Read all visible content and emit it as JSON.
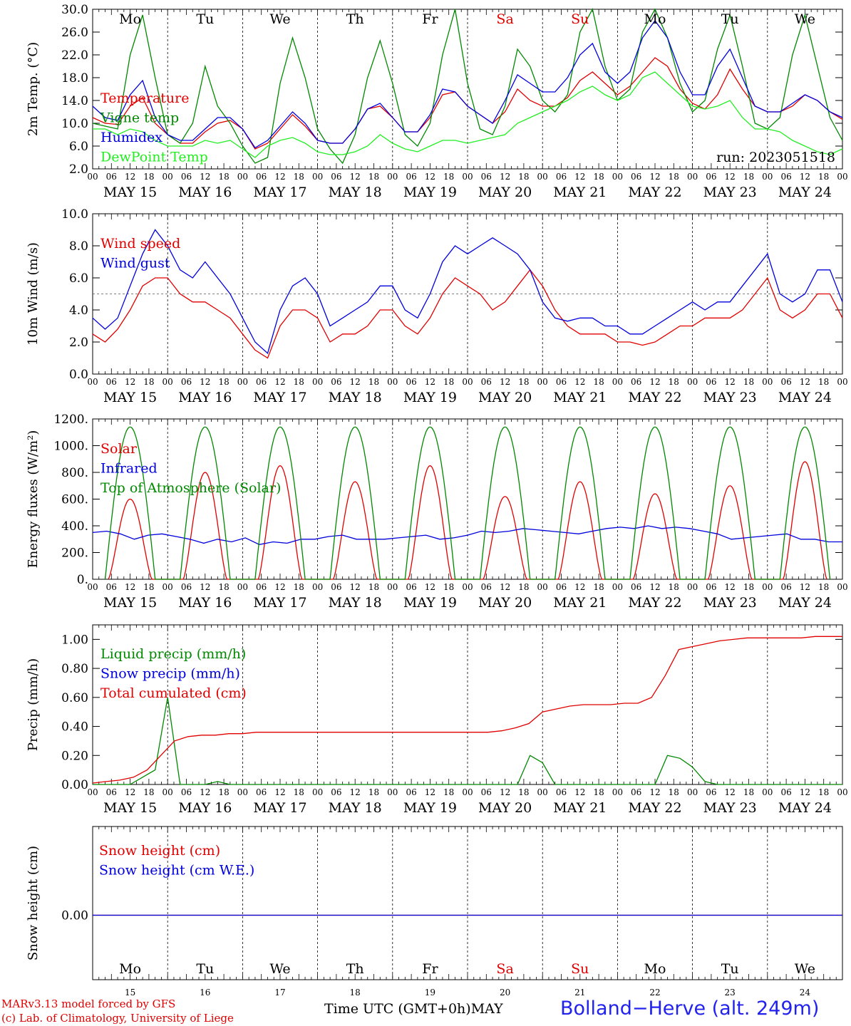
{
  "chart_data": {
    "x_axis": {
      "hour_ticks": [
        "00",
        "06",
        "12",
        "18"
      ],
      "final_tick": "00",
      "dates": [
        "MAY 15",
        "MAY 16",
        "MAY 17",
        "MAY 18",
        "MAY 19",
        "MAY 20",
        "MAY 21",
        "MAY 22",
        "MAY 23",
        "MAY 24"
      ],
      "weekdays": [
        "Mo",
        "Tu",
        "We",
        "Th",
        "Fr",
        "Sa",
        "Su",
        "Mo",
        "Tu",
        "We"
      ],
      "weekday_colors": [
        "#000000",
        "#000000",
        "#000000",
        "#000000",
        "#000000",
        "#e00000",
        "#e00000",
        "#000000",
        "#000000",
        "#000000"
      ],
      "day_numbers": [
        "15",
        "16",
        "17",
        "18",
        "19",
        "20",
        "21",
        "22",
        "23",
        "24"
      ],
      "month": "MAY",
      "xlabel": "Time UTC (GMT+0h)"
    },
    "panels": [
      {
        "id": "temperature",
        "type": "line",
        "ylabel": "2m Temp. (°C)",
        "ylim": [
          2.0,
          30.0
        ],
        "yticks": [
          "2.0",
          "6.0",
          "10.0",
          "14.0",
          "18.0",
          "22.0",
          "26.0",
          "30.0"
        ],
        "show_weekdays": true,
        "annotation": "run: 2023051518",
        "series": [
          {
            "name": "Temperature",
            "color": "#e00000",
            "values": [
              11,
              10,
              9.8,
              13,
              14.5,
              10,
              8,
              6.5,
              6.5,
              8.5,
              10,
              10.5,
              9,
              5.5,
              6.5,
              9,
              11.5,
              9.5,
              7,
              6.5,
              6.5,
              9,
              12.5,
              13,
              11,
              8.5,
              8.5,
              11,
              15,
              15.5,
              13,
              11.5,
              10,
              12,
              16,
              14,
              13,
              13,
              14.5,
              17.5,
              19,
              17,
              15,
              16.5,
              19,
              21.5,
              20,
              16,
              13.5,
              12.5,
              15,
              19.5,
              16,
              13,
              12,
              12,
              13,
              15,
              14,
              12,
              10.7
            ]
          },
          {
            "name": "Vigne temp",
            "color": "#008800",
            "values": [
              10,
              9.5,
              9,
              22,
              29,
              18,
              8,
              6.5,
              10,
              20,
              13,
              10,
              6,
              3,
              4,
              17,
              25,
              18,
              9,
              5.5,
              3,
              8,
              18,
              24.5,
              17,
              8,
              6,
              10,
              22,
              30,
              17,
              9,
              8,
              13,
              23,
              20,
              14,
              12,
              15,
              26,
              30,
              20,
              14,
              16,
              26,
              30,
              25,
              17,
              12,
              14,
              23,
              29,
              20,
              10,
              9,
              11,
              22,
              29,
              20,
              11,
              7
            ]
          },
          {
            "name": "Humidex",
            "color": "#0000dd",
            "values": [
              13,
              11,
              10.5,
              15,
              17.5,
              11,
              8,
              7,
              7,
              9,
              11,
              11,
              9,
              5.7,
              7,
              9.5,
              12,
              10,
              7,
              6.5,
              6.5,
              9,
              12.5,
              13.5,
              11,
              8.5,
              8.5,
              11.5,
              16,
              15.5,
              13,
              11.5,
              10,
              14,
              18.5,
              17,
              15.5,
              15.5,
              18,
              22,
              24,
              19,
              17,
              19,
              25,
              28,
              25,
              19,
              15,
              15,
              20,
              23,
              18,
              13,
              12,
              12,
              13.5,
              15,
              14,
              12,
              11
            ]
          },
          {
            "name": "DewPoint Temp",
            "color": "#22ee22",
            "values": [
              9,
              9,
              8,
              9,
              8.5,
              7,
              6,
              6,
              6,
              7,
              6.5,
              7,
              5.5,
              4,
              6,
              7,
              7.5,
              6.5,
              5,
              4.5,
              4.5,
              5,
              6,
              8,
              6.5,
              5.5,
              5,
              6,
              7,
              7,
              6.5,
              7,
              7.5,
              8,
              10,
              11,
              12,
              13,
              14,
              15.5,
              16.5,
              15,
              14,
              15,
              18,
              19,
              17,
              15,
              13,
              12.5,
              13,
              14,
              11,
              9,
              9,
              8.5,
              7,
              6,
              5,
              4.5,
              5.5
            ]
          }
        ]
      },
      {
        "id": "wind",
        "type": "line",
        "ylabel": "10m Wind (m/s)",
        "ylim": [
          0.0,
          10.0
        ],
        "yticks": [
          "0.0",
          "2.0",
          "4.0",
          "6.0",
          "8.0",
          "10.0"
        ],
        "reference_line": 5.0,
        "series": [
          {
            "name": "Wind speed",
            "color": "#e00000",
            "values": [
              2.5,
              2,
              2.8,
              4,
              5.5,
              6,
              6,
              5,
              4.5,
              4.5,
              4,
              3.5,
              2.5,
              1.5,
              1,
              3,
              4,
              4,
              3.5,
              2,
              2.5,
              2.5,
              3,
              4,
              4,
              3,
              2.5,
              3.5,
              5,
              6,
              5.5,
              5,
              4,
              4.5,
              5.5,
              6.5,
              5.5,
              4,
              3,
              2.5,
              2.5,
              2.5,
              2,
              2,
              1.8,
              2,
              2.5,
              3,
              3,
              3.5,
              3.5,
              3.5,
              4,
              5,
              6,
              4,
              3.5,
              4,
              5,
              5,
              3.5
            ]
          },
          {
            "name": "Wind gust",
            "color": "#0000dd",
            "values": [
              3.5,
              2.8,
              3.5,
              5.5,
              7.5,
              9,
              8,
              6.5,
              6,
              7,
              6,
              5,
              3.5,
              2,
              1.3,
              4,
              5.5,
              6,
              5,
              3,
              3.5,
              4,
              4.5,
              5.5,
              5.5,
              4,
              3.5,
              5,
              7,
              8,
              7.5,
              8,
              8.5,
              8,
              7.5,
              6.5,
              4.5,
              3.5,
              3.3,
              3.5,
              3.5,
              3,
              3,
              2.5,
              2.5,
              3,
              3.5,
              4,
              4.5,
              4,
              4.5,
              4.5,
              5.5,
              6.5,
              7.5,
              5,
              4.5,
              5,
              6.5,
              6.5,
              4.5
            ]
          }
        ]
      },
      {
        "id": "energy",
        "type": "line",
        "ylabel": "Energy fluxes (W/m²)",
        "ylim": [
          0,
          1200
        ],
        "yticks": [
          "0.",
          "200.",
          "400.",
          "600.",
          "800.",
          "1000.",
          "1200."
        ],
        "solar_peaks": [
          600,
          800,
          850,
          730,
          850,
          620,
          730,
          640,
          700,
          880
        ],
        "toa_peak": 1140,
        "series": [
          {
            "name": "Solar",
            "color": "#e00000",
            "values": []
          },
          {
            "name": "Infrared",
            "color": "#0000dd",
            "values": [
              350,
              360,
              340,
              300,
              330,
              340,
              320,
              300,
              270,
              300,
              280,
              310,
              260,
              280,
              270,
              300,
              300,
              320,
              330,
              300,
              300,
              300,
              310,
              320,
              330,
              300,
              310,
              330,
              360,
              350,
              360,
              380,
              370,
              360,
              350,
              340,
              360,
              380,
              390,
              380,
              400,
              380,
              390,
              380,
              360,
              340,
              300,
              310,
              320,
              330,
              340,
              300,
              300,
              280,
              280
            ]
          },
          {
            "name": "Top of Atmosphere (Solar)",
            "color": "#008800",
            "values": []
          }
        ]
      },
      {
        "id": "precip",
        "type": "line",
        "ylabel": "Precip (mm/h)",
        "ylim": [
          0.0,
          1.1
        ],
        "yticks": [
          "0.00",
          "0.20",
          "0.40",
          "0.60",
          "0.80",
          "1.00"
        ],
        "series": [
          {
            "name": "Liquid precip (mm/h)",
            "color": "#008800",
            "values": [
              0,
              0,
              0,
              0,
              0.05,
              0.1,
              0.6,
              0,
              0,
              0,
              0.02,
              0,
              0,
              0,
              0,
              0,
              0,
              0,
              0,
              0,
              0,
              0,
              0,
              0,
              0,
              0,
              0,
              0,
              0,
              0,
              0,
              0,
              0,
              0,
              0,
              0.2,
              0.15,
              0,
              0,
              0,
              0,
              0,
              0,
              0,
              0,
              0,
              0.2,
              0.18,
              0.12,
              0.02,
              0,
              0,
              0,
              0,
              0,
              0,
              0,
              0,
              0,
              0,
              0
            ]
          },
          {
            "name": "Snow precip (mm/h)",
            "color": "#0000dd",
            "values": []
          },
          {
            "name": "Total cumulated (cm)",
            "color": "#e00000",
            "values": [
              0.01,
              0.02,
              0.03,
              0.05,
              0.1,
              0.2,
              0.3,
              0.33,
              0.34,
              0.34,
              0.35,
              0.35,
              0.36,
              0.36,
              0.36,
              0.36,
              0.36,
              0.36,
              0.36,
              0.36,
              0.36,
              0.36,
              0.36,
              0.36,
              0.36,
              0.36,
              0.36,
              0.36,
              0.36,
              0.36,
              0.37,
              0.39,
              0.42,
              0.5,
              0.52,
              0.54,
              0.55,
              0.55,
              0.55,
              0.56,
              0.56,
              0.6,
              0.75,
              0.93,
              0.95,
              0.97,
              0.99,
              1.0,
              1.01,
              1.01,
              1.01,
              1.01,
              1.01,
              1.02,
              1.02,
              1.02
            ]
          }
        ]
      },
      {
        "id": "snow",
        "type": "line",
        "ylabel": "Snow height (cm)",
        "yticks": [
          "0.00"
        ],
        "show_weekdays_bottom": true,
        "series": [
          {
            "name": "Snow height (cm)",
            "color": "#e00000",
            "values": [
              0,
              0
            ]
          },
          {
            "name": "Snow height (cm W.E.)",
            "color": "#0000dd",
            "values": [
              0,
              0
            ]
          }
        ]
      }
    ]
  },
  "footer": {
    "model": "MARv3.13 model forced by GFS",
    "copyright": "(c) Lab. of Climatology, University of Liege",
    "station": "Bolland−Herve (alt. 249m)"
  }
}
